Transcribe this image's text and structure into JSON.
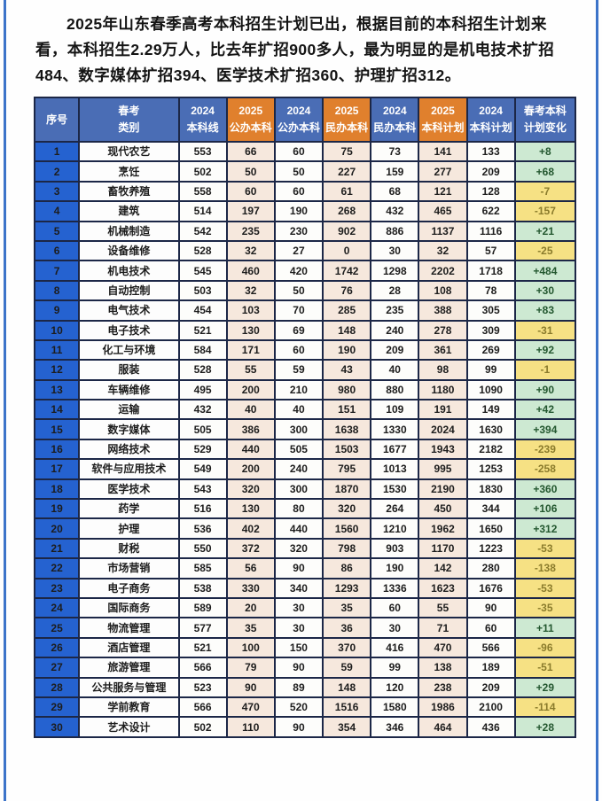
{
  "intro": {
    "text": "2025年山东春季高考本科招生计划已出，根据目前的本科招生计划来看，本科招生2.29万人，比去年扩招900多人，最为明显的是机电技术扩招484、数字媒体扩招394、医学技术扩招360、护理扩招312。"
  },
  "colors": {
    "header_blue": "#4a6db5",
    "header_orange": "#e0802d",
    "index_blue": "#2562d0",
    "cell_2025_bg": "#f6e8dd",
    "positive_bg": "#cde9d2",
    "negative_bg": "#f6e184",
    "grid_line": "#1c2747",
    "frame_line": "#3d74c9"
  },
  "table": {
    "headers": [
      "序号",
      "春考\n类别",
      "2024\n本科线",
      "2025\n公办本科",
      "2024\n公办本科",
      "2025\n民办本科",
      "2024\n民办本科",
      "2025\n本科计划",
      "2024\n本科计划",
      "春考本科\n计划变化"
    ],
    "rows": [
      [
        "1",
        "现代农艺",
        "553",
        "66",
        "60",
        "75",
        "73",
        "141",
        "133",
        "+8"
      ],
      [
        "2",
        "烹饪",
        "502",
        "50",
        "50",
        "227",
        "159",
        "277",
        "209",
        "+68"
      ],
      [
        "3",
        "畜牧养殖",
        "558",
        "60",
        "60",
        "61",
        "68",
        "121",
        "128",
        "-7"
      ],
      [
        "4",
        "建筑",
        "514",
        "197",
        "190",
        "268",
        "432",
        "465",
        "622",
        "-157"
      ],
      [
        "5",
        "机械制造",
        "542",
        "235",
        "230",
        "902",
        "886",
        "1137",
        "1116",
        "+21"
      ],
      [
        "6",
        "设备维修",
        "528",
        "32",
        "27",
        "0",
        "30",
        "32",
        "57",
        "-25"
      ],
      [
        "7",
        "机电技术",
        "545",
        "460",
        "420",
        "1742",
        "1298",
        "2202",
        "1718",
        "+484"
      ],
      [
        "8",
        "自动控制",
        "503",
        "32",
        "50",
        "76",
        "28",
        "108",
        "78",
        "+30"
      ],
      [
        "9",
        "电气技术",
        "454",
        "103",
        "70",
        "285",
        "235",
        "388",
        "305",
        "+83"
      ],
      [
        "10",
        "电子技术",
        "521",
        "130",
        "69",
        "148",
        "240",
        "278",
        "309",
        "-31"
      ],
      [
        "11",
        "化工与环境",
        "584",
        "171",
        "60",
        "190",
        "209",
        "361",
        "269",
        "+92"
      ],
      [
        "12",
        "服装",
        "528",
        "55",
        "59",
        "43",
        "40",
        "98",
        "99",
        "-1"
      ],
      [
        "13",
        "车辆维修",
        "495",
        "200",
        "210",
        "980",
        "880",
        "1180",
        "1090",
        "+90"
      ],
      [
        "14",
        "运输",
        "432",
        "40",
        "40",
        "151",
        "109",
        "191",
        "149",
        "+42"
      ],
      [
        "15",
        "数字媒体",
        "505",
        "386",
        "300",
        "1638",
        "1330",
        "2024",
        "1630",
        "+394"
      ],
      [
        "16",
        "网络技术",
        "529",
        "440",
        "505",
        "1503",
        "1677",
        "1943",
        "2182",
        "-239"
      ],
      [
        "17",
        "软件与应用技术",
        "549",
        "200",
        "240",
        "795",
        "1013",
        "995",
        "1253",
        "-258"
      ],
      [
        "18",
        "医学技术",
        "543",
        "320",
        "300",
        "1870",
        "1530",
        "2190",
        "1830",
        "+360"
      ],
      [
        "19",
        "药学",
        "516",
        "130",
        "80",
        "320",
        "264",
        "450",
        "344",
        "+106"
      ],
      [
        "20",
        "护理",
        "536",
        "402",
        "440",
        "1560",
        "1210",
        "1962",
        "1650",
        "+312"
      ],
      [
        "21",
        "财税",
        "550",
        "372",
        "320",
        "798",
        "903",
        "1170",
        "1223",
        "-53"
      ],
      [
        "22",
        "市场营销",
        "585",
        "56",
        "90",
        "86",
        "190",
        "142",
        "280",
        "-138"
      ],
      [
        "23",
        "电子商务",
        "538",
        "330",
        "340",
        "1293",
        "1336",
        "1623",
        "1676",
        "-53"
      ],
      [
        "24",
        "国际商务",
        "589",
        "20",
        "30",
        "35",
        "60",
        "55",
        "90",
        "-35"
      ],
      [
        "25",
        "物流管理",
        "577",
        "35",
        "30",
        "36",
        "30",
        "71",
        "60",
        "+11"
      ],
      [
        "26",
        "酒店管理",
        "521",
        "100",
        "150",
        "370",
        "416",
        "470",
        "566",
        "-96"
      ],
      [
        "27",
        "旅游管理",
        "566",
        "79",
        "90",
        "59",
        "99",
        "138",
        "189",
        "-51"
      ],
      [
        "28",
        "公共服务与管理",
        "523",
        "90",
        "89",
        "148",
        "120",
        "238",
        "209",
        "+29"
      ],
      [
        "29",
        "学前教育",
        "566",
        "470",
        "520",
        "1516",
        "1580",
        "1986",
        "2100",
        "-114"
      ],
      [
        "30",
        "艺术设计",
        "502",
        "110",
        "90",
        "354",
        "346",
        "464",
        "436",
        "+28"
      ]
    ]
  }
}
